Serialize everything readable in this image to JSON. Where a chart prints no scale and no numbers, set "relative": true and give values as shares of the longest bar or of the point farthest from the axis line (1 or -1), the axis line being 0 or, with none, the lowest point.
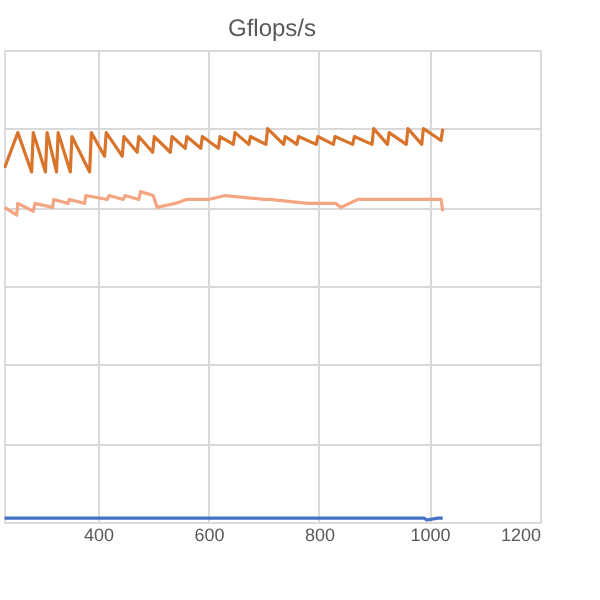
{
  "chart_data": {
    "type": "line",
    "title": "Gflops/s",
    "relative": true,
    "grid": true,
    "marker": "none",
    "line_style": "solid",
    "xlim": [
      230,
      1200
    ],
    "xticks": [
      400,
      600,
      800,
      1000,
      1200
    ],
    "series": [
      {
        "color": "#d9742c",
        "x": [
          231,
          255,
          280,
          283,
          305,
          308,
          325,
          328,
          350,
          353,
          385,
          388,
          412,
          415,
          444,
          447,
          471,
          474,
          499,
          502,
          531,
          534,
          558,
          561,
          586,
          589,
          618,
          621,
          645,
          648,
          673,
          676,
          704,
          707,
          736,
          739,
          760,
          763,
          795,
          798,
          826,
          829,
          861,
          864,
          896,
          899,
          924,
          927,
          958,
          961,
          986,
          989,
          1021,
          1024
        ],
        "values": [
          0.9,
          0.99,
          0.89,
          0.99,
          0.89,
          0.99,
          0.89,
          0.99,
          0.89,
          0.98,
          0.89,
          0.99,
          0.93,
          0.99,
          0.93,
          0.98,
          0.94,
          0.98,
          0.94,
          0.98,
          0.94,
          0.98,
          0.95,
          0.98,
          0.95,
          0.98,
          0.95,
          0.98,
          0.96,
          0.99,
          0.96,
          0.98,
          0.96,
          1.0,
          0.96,
          0.98,
          0.96,
          0.98,
          0.96,
          0.98,
          0.96,
          0.98,
          0.96,
          0.98,
          0.96,
          1.0,
          0.96,
          0.99,
          0.96,
          1.0,
          0.96,
          1.0,
          0.97,
          1.0
        ]
      },
      {
        "color": "#f4a582",
        "x": [
          231,
          253,
          255,
          283,
          286,
          318,
          320,
          346,
          348,
          376,
          378,
          417,
          420,
          446,
          449,
          474,
          477,
          500,
          507,
          540,
          560,
          600,
          630,
          700,
          710,
          780,
          830,
          840,
          870,
          920,
          990,
          1021,
          1024
        ],
        "values": [
          0.8,
          0.78,
          0.81,
          0.79,
          0.81,
          0.8,
          0.82,
          0.81,
          0.82,
          0.81,
          0.83,
          0.82,
          0.83,
          0.82,
          0.83,
          0.82,
          0.84,
          0.83,
          0.8,
          0.81,
          0.82,
          0.82,
          0.83,
          0.82,
          0.82,
          0.81,
          0.81,
          0.8,
          0.82,
          0.82,
          0.82,
          0.82,
          0.79
        ]
      },
      {
        "color": "#4472c4",
        "x": [
          231,
          500,
          800,
          990,
          995,
          1015,
          1024
        ],
        "values": [
          0.01,
          0.01,
          0.01,
          0.01,
          0.005,
          0.01,
          0.01
        ]
      }
    ]
  }
}
